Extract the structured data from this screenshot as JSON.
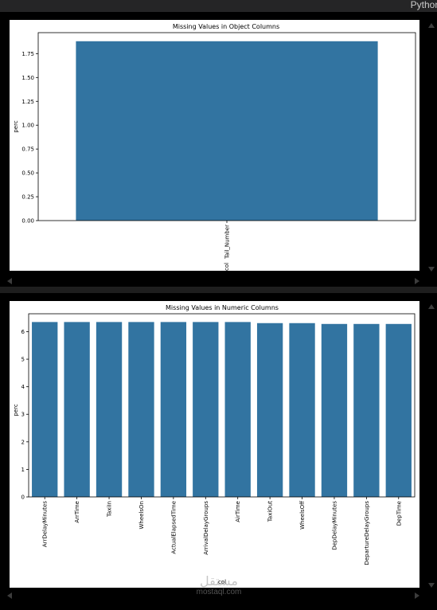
{
  "editor": {
    "language": "Python"
  },
  "watermark": {
    "arabic": "مستقل",
    "latin": "mostaql.com"
  },
  "colors": {
    "bar": "#3274a1",
    "background": "#1e1e1e",
    "cell": "#000000"
  },
  "chart_data": [
    {
      "type": "bar",
      "title": "Missing Values in Object Columns",
      "xlabel": "col",
      "ylabel": "perc",
      "categories": [
        "Tail_Number"
      ],
      "values": [
        1.88
      ],
      "ylim": [
        0,
        1.97
      ],
      "yticks": [
        "0.00",
        "0.25",
        "0.50",
        "0.75",
        "1.00",
        "1.25",
        "1.50",
        "1.75"
      ],
      "grid": false
    },
    {
      "type": "bar",
      "title": "Missing Values in Numeric Columns",
      "xlabel": "col",
      "ylabel": "perc",
      "categories": [
        "ArrDelayMinutes",
        "ArrTime",
        "TaxiIn",
        "WheelsOn",
        "ActualElapsedTime",
        "ArrivalDelayGroups",
        "AirTime",
        "TaxiOut",
        "WheelsOff",
        "DepDelayMinutes",
        "DepartureDelayGroups",
        "DepTime"
      ],
      "values": [
        6.35,
        6.35,
        6.35,
        6.35,
        6.35,
        6.35,
        6.35,
        6.31,
        6.31,
        6.28,
        6.28,
        6.28
      ],
      "ylim": [
        0,
        6.65
      ],
      "yticks": [
        "0",
        "1",
        "2",
        "3",
        "4",
        "5",
        "6"
      ],
      "grid": false
    }
  ]
}
